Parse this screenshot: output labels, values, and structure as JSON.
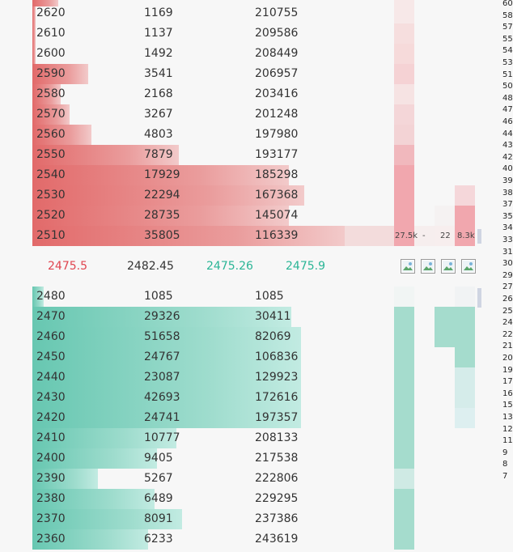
{
  "asks": [
    {
      "price": "2620",
      "size": "1169",
      "total": "210755",
      "fill": 0.0
    },
    {
      "price": "2610",
      "size": "1137",
      "total": "209586",
      "fill": 0.0
    },
    {
      "price": "2600",
      "size": "1492",
      "total": "208449",
      "fill": 0.0
    },
    {
      "price": "2590",
      "size": "3541",
      "total": "206957",
      "fill": 0.18
    },
    {
      "price": "2580",
      "size": "2168",
      "total": "203416",
      "fill": 0.09
    },
    {
      "price": "2570",
      "size": "3267",
      "total": "201248",
      "fill": 0.12
    },
    {
      "price": "2560",
      "size": "4803",
      "total": "197980",
      "fill": 0.19
    },
    {
      "price": "2550",
      "size": "7879",
      "total": "193177",
      "fill": 0.47
    },
    {
      "price": "2540",
      "size": "17929",
      "total": "185298",
      "fill": 0.82
    },
    {
      "price": "2530",
      "size": "22294",
      "total": "167368",
      "fill": 0.87
    },
    {
      "price": "2520",
      "size": "28735",
      "total": "145074",
      "fill": 0.82
    },
    {
      "price": "2510",
      "size": "35805",
      "total": "116339",
      "fill": 1.0
    }
  ],
  "mid": {
    "ask_price": "2475.5",
    "last_price": "2482.45",
    "bid_price": "2475.26",
    "mark_price": "2475.9"
  },
  "bids": [
    {
      "price": "2480",
      "size": "1085",
      "total": "1085",
      "fill": 0.0
    },
    {
      "price": "2470",
      "size": "29326",
      "total": "30411",
      "fill": 0.83
    },
    {
      "price": "2460",
      "size": "51658",
      "total": "82069",
      "fill": 0.86
    },
    {
      "price": "2450",
      "size": "24767",
      "total": "106836",
      "fill": 0.86
    },
    {
      "price": "2440",
      "size": "23087",
      "total": "129923",
      "fill": 0.86
    },
    {
      "price": "2430",
      "size": "42693",
      "total": "172616",
      "fill": 0.86
    },
    {
      "price": "2420",
      "size": "24741",
      "total": "197357",
      "fill": 0.86
    },
    {
      "price": "2410",
      "size": "10777",
      "total": "208133",
      "fill": 0.46
    },
    {
      "price": "2400",
      "size": "9405",
      "total": "217538",
      "fill": 0.4
    },
    {
      "price": "2390",
      "size": "5267",
      "total": "222806",
      "fill": 0.21
    },
    {
      "price": "2380",
      "size": "6489",
      "total": "229295",
      "fill": 0.39
    },
    {
      "price": "2370",
      "size": "8091",
      "total": "237386",
      "fill": 0.48
    },
    {
      "price": "2360",
      "size": "6233",
      "total": "243619",
      "fill": 0.37
    }
  ],
  "volume_labels": {
    "a": "27.5k",
    "b": "-",
    "c": "22",
    "d": "8.3k"
  },
  "scale_labels": [
    "60",
    "58",
    "57",
    "55",
    "54",
    "53",
    "51",
    "50",
    "48",
    "47",
    "46",
    "44",
    "43",
    "42",
    "40",
    "39",
    "38",
    "37",
    "35",
    "34",
    "33",
    "31",
    "30",
    "29",
    "27",
    "26",
    "25",
    "24",
    "22",
    "21",
    "20",
    "19",
    "17",
    "16",
    "15",
    "13",
    "12",
    "11",
    "9",
    "8",
    "7"
  ],
  "colors": {
    "ask": "#e26a6a",
    "bid": "#2bb596",
    "mid_ask": "#e0454f",
    "mid_bid": "#2bb596"
  },
  "icons": [
    "broken-image-icon",
    "broken-image-icon",
    "broken-image-icon",
    "broken-image-icon"
  ]
}
